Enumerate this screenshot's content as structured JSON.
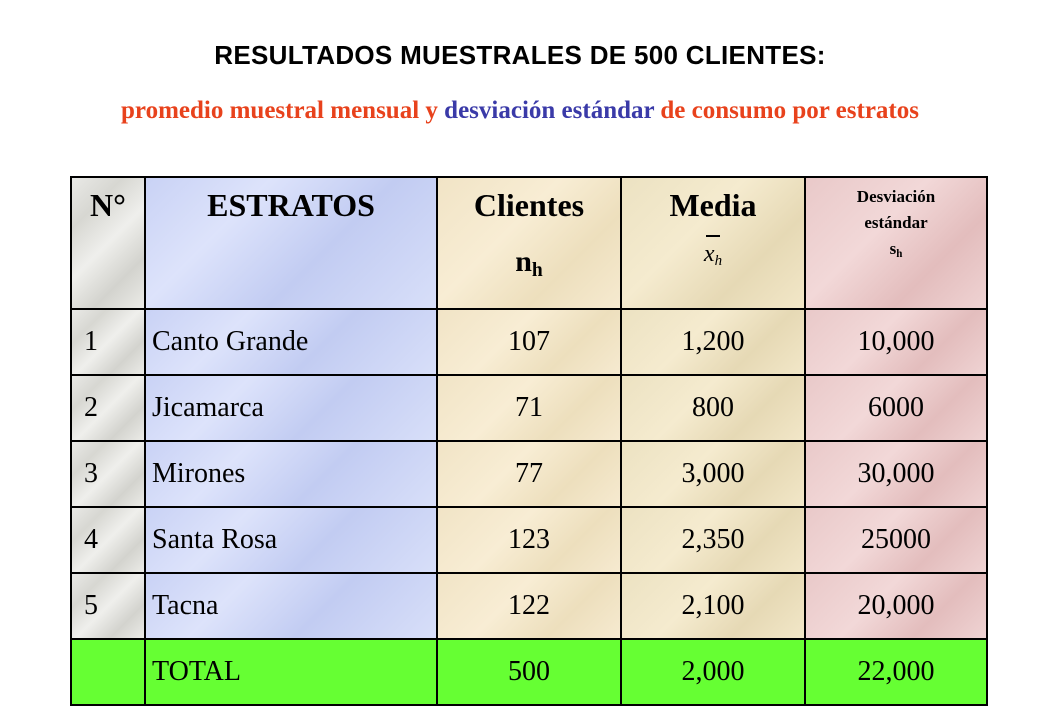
{
  "title": "RESULTADOS MUESTRALES DE 500 CLIENTES:",
  "subtitle": {
    "part1": "promedio muestral mensual y ",
    "part2": "desviación estándar",
    "part3": " de consumo por estratos"
  },
  "headers": {
    "no": "N°",
    "estratos": "ESTRATOS",
    "clientes": "Clientes",
    "clientes_sym": "n",
    "clientes_sub": "h",
    "media": "Media",
    "media_sym": "x",
    "media_sub": "h",
    "desviacion_line1": "Desviación",
    "desviacion_line2": "estándar",
    "desviacion_sym": "s",
    "desviacion_sub": "h"
  },
  "rows": [
    {
      "no": "1",
      "estrato": "Canto Grande",
      "clientes": "107",
      "media": "1,200",
      "desviacion": "10,000"
    },
    {
      "no": "2",
      "estrato": "Jicamarca",
      "clientes": "71",
      "media": "800",
      "desviacion": "6000"
    },
    {
      "no": "3",
      "estrato": "Mirones",
      "clientes": "77",
      "media": "3,000",
      "desviacion": "30,000"
    },
    {
      "no": "4",
      "estrato": "Santa Rosa",
      "clientes": "123",
      "media": "2,350",
      "desviacion": "25000"
    },
    {
      "no": "5",
      "estrato": "Tacna",
      "clientes": "122",
      "media": "2,100",
      "desviacion": "20,000"
    }
  ],
  "total": {
    "no": "",
    "label": "TOTAL",
    "clientes": "500",
    "media": "2,000",
    "desviacion": "22,000"
  },
  "colors": {
    "title_orange": "#e8421c",
    "title_blue": "#3a3aa8",
    "total_green": "#66ff33"
  }
}
